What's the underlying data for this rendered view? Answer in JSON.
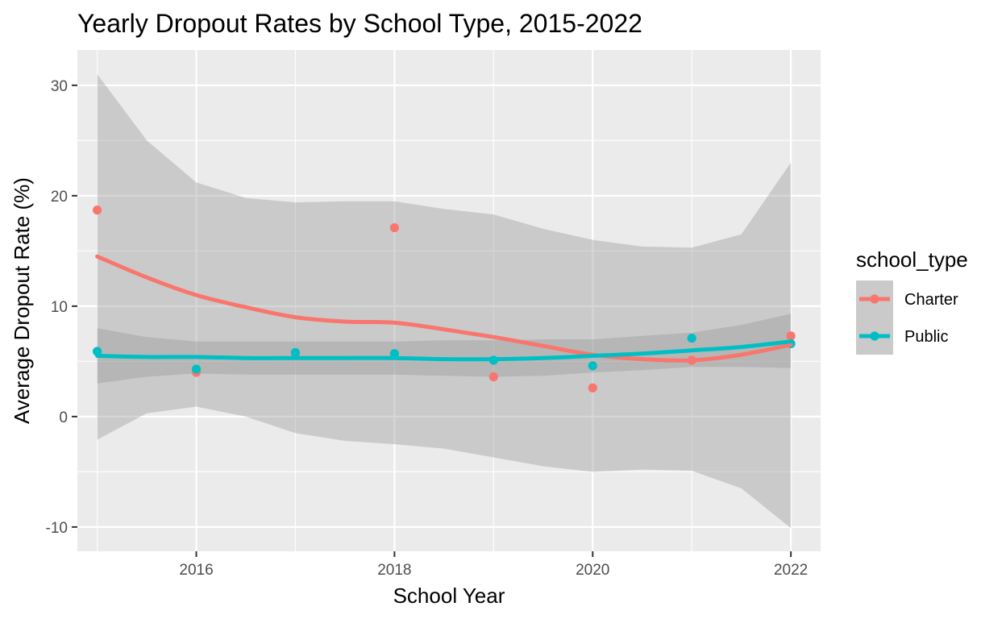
{
  "chart_data": {
    "type": "line",
    "title": "Yearly Dropout Rates by School Type, 2015-2022",
    "xlabel": "School Year",
    "ylabel": "Average Dropout Rate (%)",
    "xlim": [
      2014.8,
      2022.3
    ],
    "ylim": [
      -12.2,
      33.2
    ],
    "x_ticks": [
      2016,
      2018,
      2020,
      2022
    ],
    "x_tick_labels": [
      "2016",
      "2018",
      "2020",
      "2022"
    ],
    "x_minor_ticks": [
      2015,
      2017,
      2019,
      2021
    ],
    "y_ticks": [
      -10,
      0,
      10,
      20,
      30
    ],
    "y_tick_labels": [
      "-10",
      "0",
      "10",
      "20",
      "30"
    ],
    "y_minor_ticks": [
      -5,
      5,
      15,
      25
    ],
    "grid": true,
    "legend": {
      "title": "school_type",
      "position": "right"
    },
    "x": [
      2015,
      2016,
      2017,
      2018,
      2019,
      2020,
      2021,
      2022
    ],
    "series": [
      {
        "name": "Charter",
        "color": "#F8766D",
        "points": [
          18.7,
          4.0,
          5.6,
          17.1,
          3.6,
          2.6,
          5.1,
          7.3
        ],
        "smooth_x": [
          2015,
          2015.5,
          2016,
          2016.5,
          2017,
          2017.5,
          2018,
          2018.5,
          2019,
          2019.5,
          2020,
          2020.5,
          2021,
          2021.5,
          2022
        ],
        "smooth": [
          14.5,
          12.6,
          11.0,
          9.9,
          9.0,
          8.6,
          8.5,
          7.9,
          7.2,
          6.4,
          5.6,
          5.2,
          5.1,
          5.6,
          6.5
        ],
        "band_upper": [
          31.0,
          25.0,
          21.2,
          19.8,
          19.4,
          19.5,
          19.5,
          18.8,
          18.3,
          17.0,
          16.0,
          15.4,
          15.3,
          16.5,
          23.0
        ],
        "band_lower": [
          -2.1,
          0.3,
          0.9,
          0.0,
          -1.5,
          -2.2,
          -2.5,
          -2.9,
          -3.7,
          -4.5,
          -5.0,
          -4.8,
          -4.9,
          -6.5,
          -10.1
        ]
      },
      {
        "name": "Public",
        "color": "#00BFC4",
        "points": [
          5.9,
          4.3,
          5.8,
          5.7,
          5.1,
          4.6,
          7.1,
          6.6
        ],
        "smooth_x": [
          2015,
          2015.5,
          2016,
          2016.5,
          2017,
          2017.5,
          2018,
          2018.5,
          2019,
          2019.5,
          2020,
          2020.5,
          2021,
          2021.5,
          2022
        ],
        "smooth": [
          5.5,
          5.4,
          5.4,
          5.3,
          5.3,
          5.3,
          5.3,
          5.2,
          5.2,
          5.3,
          5.5,
          5.7,
          6.0,
          6.3,
          6.8
        ],
        "band_upper": [
          8.0,
          7.2,
          6.8,
          6.8,
          6.8,
          6.8,
          6.8,
          6.9,
          6.9,
          7.0,
          7.0,
          7.3,
          7.6,
          8.3,
          9.3
        ],
        "band_lower": [
          3.0,
          3.6,
          3.9,
          3.8,
          3.8,
          3.8,
          3.8,
          3.7,
          3.6,
          3.7,
          4.0,
          4.2,
          4.5,
          4.5,
          4.4
        ]
      }
    ]
  }
}
